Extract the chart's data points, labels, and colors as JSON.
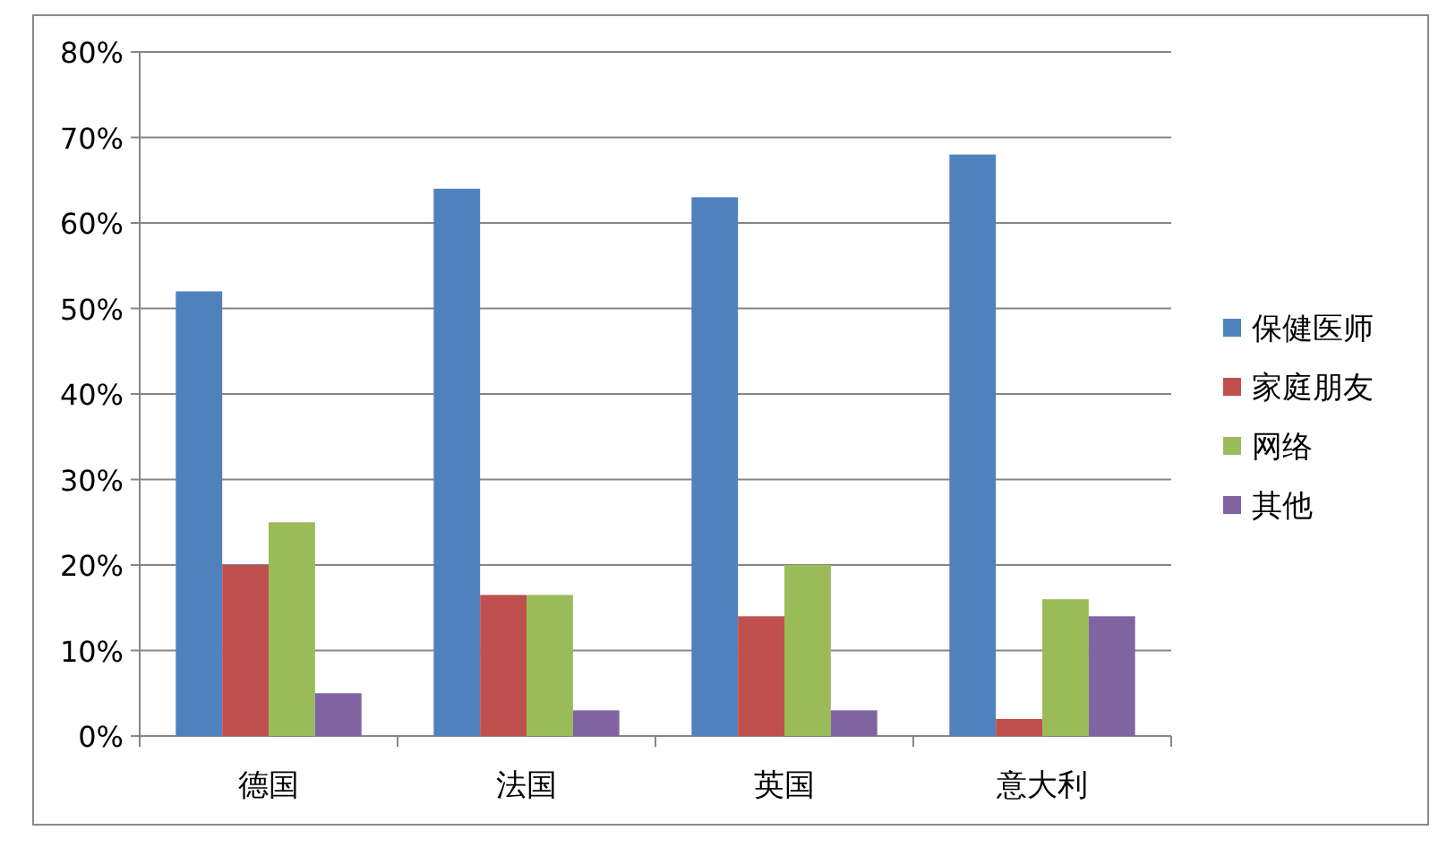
{
  "chart_data": {
    "type": "bar",
    "categories": [
      "德国",
      "法国",
      "英国",
      "意大利"
    ],
    "series": [
      {
        "name": "保健医师",
        "color": "#4f81bd",
        "values": [
          52,
          64,
          63,
          68
        ]
      },
      {
        "name": "家庭朋友",
        "color": "#c0504d",
        "values": [
          20,
          16.5,
          14,
          2
        ]
      },
      {
        "name": "网络",
        "color": "#9bbb59",
        "values": [
          25,
          16.5,
          20,
          16
        ]
      },
      {
        "name": "其他",
        "color": "#8064a2",
        "values": [
          5,
          3,
          3,
          14
        ]
      }
    ],
    "ylim": [
      0,
      80
    ],
    "yticks": [
      {
        "value": 0,
        "label": "0%"
      },
      {
        "value": 10,
        "label": "10%"
      },
      {
        "value": 20,
        "label": "20%"
      },
      {
        "value": 30,
        "label": "30%"
      },
      {
        "value": 40,
        "label": "40%"
      },
      {
        "value": 50,
        "label": "50%"
      },
      {
        "value": 60,
        "label": "60%"
      },
      {
        "value": 70,
        "label": "70%"
      },
      {
        "value": 80,
        "label": "80%"
      }
    ],
    "grid": "y",
    "legend": "right"
  }
}
